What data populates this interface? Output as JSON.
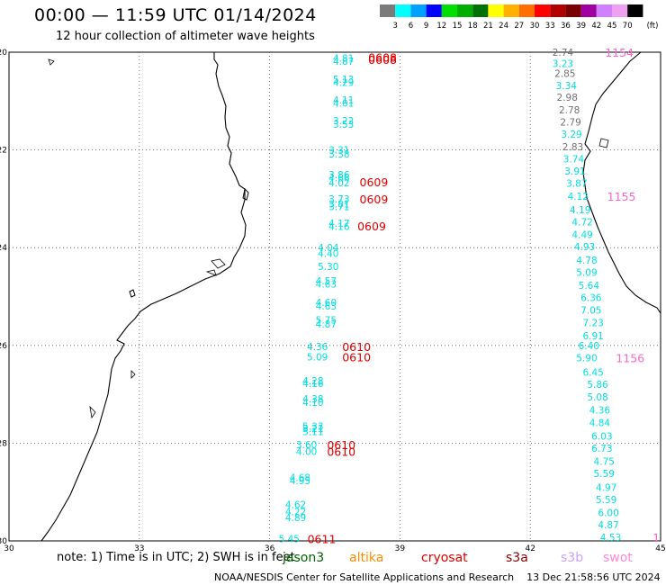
{
  "header": {
    "title": "00:00 — 11:59 UTC 01/14/2024",
    "subtitle": "12 hour collection of altimeter wave heights"
  },
  "colorbar": {
    "unit": "(ft)",
    "ticks": [
      "3",
      "6",
      "9",
      "12",
      "15",
      "18",
      "21",
      "24",
      "27",
      "30",
      "33",
      "36",
      "39",
      "42",
      "45",
      "70"
    ],
    "colors": [
      "#7b7b7b",
      "#00ffff",
      "#00a0ff",
      "#0000ff",
      "#00e000",
      "#00ae00",
      "#007000",
      "#ffff00",
      "#ffb000",
      "#ff6e00",
      "#ff0000",
      "#b00000",
      "#780000",
      "#a000a0",
      "#d080ff",
      "#f0a0f0",
      "#000000"
    ]
  },
  "axes": {
    "lon_labels": [
      "30",
      "33",
      "36",
      "39",
      "42",
      "45"
    ],
    "lat_labels": [
      "-20",
      "-22",
      "-24",
      "-26",
      "-28",
      "-30"
    ],
    "lon_range": [
      30,
      45
    ],
    "lat_range": [
      -30,
      -20
    ]
  },
  "tracks": [
    {
      "pass": "0608",
      "pass_lat": -20.15,
      "pass_lon": 38.6,
      "pass_color": "#e00000",
      "points": [
        {
          "lat": -20.12,
          "lon": 37.7,
          "h": "4.81",
          "color": "#00e0e0"
        },
        {
          "lat": -20.18,
          "lon": 37.7,
          "h": "4.87",
          "color": "#00e0e0"
        },
        {
          "lat": -20.55,
          "lon": 37.7,
          "h": "5.13",
          "color": "#00e0e0"
        },
        {
          "lat": -20.62,
          "lon": 37.7,
          "h": "4.29",
          "color": "#00e0e0"
        },
        {
          "lat": -20.98,
          "lon": 37.7,
          "h": "4.11",
          "color": "#00e0e0"
        },
        {
          "lat": -21.04,
          "lon": 37.7,
          "h": "4.01",
          "color": "#00e0e0"
        },
        {
          "lat": -21.4,
          "lon": 37.7,
          "h": "3.22",
          "color": "#00e0e0"
        },
        {
          "lat": -21.47,
          "lon": 37.7,
          "h": "3.53",
          "color": "#00e0e0"
        }
      ]
    },
    {
      "pass": "0608",
      "pass_lat": -20.1,
      "pass_lon": 38.6,
      "pass_color": "#e00000",
      "points": []
    },
    {
      "pass": "0609",
      "pass_lat": -22.65,
      "pass_lon": 38.4,
      "pass_color": "#e00000",
      "points": [
        {
          "lat": -22.0,
          "lon": 37.6,
          "h": "3.31",
          "color": "#00e0e0"
        },
        {
          "lat": -22.08,
          "lon": 37.6,
          "h": "3.38",
          "color": "#00e0e0"
        },
        {
          "lat": -22.5,
          "lon": 37.6,
          "h": "3.86",
          "color": "#00e0e0"
        },
        {
          "lat": -22.57,
          "lon": 37.6,
          "h": "4.66",
          "color": "#00e0e0"
        },
        {
          "lat": -22.67,
          "lon": 37.6,
          "h": "4.02",
          "color": "#00e0e0"
        }
      ]
    },
    {
      "pass": "0609",
      "pass_lat": -23.0,
      "pass_lon": 38.4,
      "pass_color": "#e00000",
      "points": [
        {
          "lat": -23.0,
          "lon": 37.6,
          "h": "3.73",
          "color": "#00e0e0"
        },
        {
          "lat": -23.1,
          "lon": 37.6,
          "h": "3.81",
          "color": "#00e0e0"
        },
        {
          "lat": -23.16,
          "lon": 37.6,
          "h": "3.71",
          "color": "#00e0e0"
        }
      ]
    },
    {
      "pass": "0609",
      "pass_lat": -23.55,
      "pass_lon": 38.35,
      "pass_color": "#e00000",
      "points": [
        {
          "lat": -23.5,
          "lon": 37.6,
          "h": "4.17",
          "color": "#00e0e0"
        },
        {
          "lat": -23.56,
          "lon": 37.6,
          "h": "4.16",
          "color": "#00e0e0"
        }
      ]
    },
    {
      "pass": "",
      "pass_lat": -24.0,
      "pass_lon": 38.0,
      "pass_color": "#e00000",
      "points": [
        {
          "lat": -24.0,
          "lon": 37.35,
          "h": "4.04",
          "color": "#00e0e0"
        },
        {
          "lat": -24.12,
          "lon": 37.35,
          "h": "4.40",
          "color": "#00e0e0"
        },
        {
          "lat": -24.38,
          "lon": 37.35,
          "h": "5.30",
          "color": "#00e0e0"
        },
        {
          "lat": -24.68,
          "lon": 37.3,
          "h": "4.57",
          "color": "#00e0e0"
        },
        {
          "lat": -24.74,
          "lon": 37.3,
          "h": "4.63",
          "color": "#00e0e0"
        },
        {
          "lat": -25.12,
          "lon": 37.3,
          "h": "4.60",
          "color": "#00e0e0"
        },
        {
          "lat": -25.19,
          "lon": 37.3,
          "h": "4.63",
          "color": "#00e0e0"
        },
        {
          "lat": -25.48,
          "lon": 37.3,
          "h": "5.75",
          "color": "#00e0e0"
        },
        {
          "lat": -25.56,
          "lon": 37.3,
          "h": "4.87",
          "color": "#00e0e0"
        }
      ]
    },
    {
      "pass": "0610",
      "pass_lat": -26.02,
      "pass_lon": 38.0,
      "pass_color": "#e00000",
      "points": [
        {
          "lat": -26.02,
          "lon": 37.1,
          "h": "4.36",
          "color": "#00e0e0"
        },
        {
          "lat": -26.23,
          "lon": 37.1,
          "h": "5.09",
          "color": "#00e0e0"
        }
      ]
    },
    {
      "pass": "0610",
      "pass_lat": -26.23,
      "pass_lon": 38.0,
      "pass_color": "#e00000",
      "points": []
    },
    {
      "pass": "",
      "pass_lat": -27.0,
      "pass_lon": 38.0,
      "pass_color": "#e00000",
      "points": [
        {
          "lat": -26.72,
          "lon": 37.0,
          "h": "4.28",
          "color": "#00e0e0"
        },
        {
          "lat": -26.78,
          "lon": 37.0,
          "h": "4.16",
          "color": "#00e0e0"
        },
        {
          "lat": -27.09,
          "lon": 37.0,
          "h": "4.38",
          "color": "#00e0e0"
        },
        {
          "lat": -27.16,
          "lon": 37.0,
          "h": "4.10",
          "color": "#00e0e0"
        },
        {
          "lat": -27.65,
          "lon": 37.0,
          "h": "5.33",
          "color": "#00e0e0"
        },
        {
          "lat": -27.7,
          "lon": 37.0,
          "h": "5.21",
          "color": "#00e0e0"
        },
        {
          "lat": -27.76,
          "lon": 37.0,
          "h": "5.11",
          "color": "#00e0e0"
        }
      ]
    },
    {
      "pass": "0610",
      "pass_lat": -28.03,
      "pass_lon": 37.65,
      "pass_color": "#e00000",
      "points": [
        {
          "lat": -28.03,
          "lon": 36.85,
          "h": "3.60",
          "color": "#00e0e0"
        },
        {
          "lat": -28.17,
          "lon": 36.85,
          "h": "4.00",
          "color": "#00e0e0"
        }
      ]
    },
    {
      "pass": "0610",
      "pass_lat": -28.17,
      "pass_lon": 37.65,
      "pass_color": "#e00000",
      "points": []
    },
    {
      "pass": "0611",
      "pass_lat": -29.95,
      "pass_lon": 37.2,
      "pass_color": "#e00000",
      "points": [
        {
          "lat": -28.7,
          "lon": 36.7,
          "h": "4.68",
          "color": "#00e0e0"
        },
        {
          "lat": -28.77,
          "lon": 36.7,
          "h": "4.95",
          "color": "#00e0e0"
        },
        {
          "lat": -29.25,
          "lon": 36.6,
          "h": "4.62",
          "color": "#00e0e0"
        },
        {
          "lat": -29.4,
          "lon": 36.6,
          "h": "4.22",
          "color": "#00e0e0"
        },
        {
          "lat": -29.52,
          "lon": 36.6,
          "h": "4.89",
          "color": "#00e0e0"
        },
        {
          "lat": -29.95,
          "lon": 36.45,
          "h": "5.45",
          "color": "#00e0e0"
        }
      ]
    },
    {
      "pass": "1154",
      "pass_lat": -20.0,
      "pass_lon": 44.05,
      "pass_color": "#ff66cc",
      "points": [
        {
          "lat": -20.0,
          "lon": 42.75,
          "h": "2.74",
          "color": "#707070"
        },
        {
          "lat": -20.23,
          "lon": 42.75,
          "h": "3.23",
          "color": "#00e0e0"
        },
        {
          "lat": -20.43,
          "lon": 42.8,
          "h": "2.85",
          "color": "#707070"
        },
        {
          "lat": -20.68,
          "lon": 42.83,
          "h": "3.34",
          "color": "#00e0e0"
        },
        {
          "lat": -20.92,
          "lon": 42.85,
          "h": "2.98",
          "color": "#707070"
        },
        {
          "lat": -21.18,
          "lon": 42.9,
          "h": "2.78",
          "color": "#707070"
        },
        {
          "lat": -21.43,
          "lon": 42.93,
          "h": "2.79",
          "color": "#707070"
        },
        {
          "lat": -21.68,
          "lon": 42.95,
          "h": "3.29",
          "color": "#00e0e0"
        },
        {
          "lat": -21.93,
          "lon": 42.98,
          "h": "2.83",
          "color": "#707070"
        },
        {
          "lat": -22.18,
          "lon": 43.0,
          "h": "3.74",
          "color": "#00e0e0"
        },
        {
          "lat": -22.43,
          "lon": 43.03,
          "h": "3.91",
          "color": "#00e0e0"
        },
        {
          "lat": -22.68,
          "lon": 43.07,
          "h": "3.87",
          "color": "#00e0e0"
        }
      ]
    },
    {
      "pass": "1155",
      "pass_lat": -22.95,
      "pass_lon": 44.1,
      "pass_color": "#ff66cc",
      "points": [
        {
          "lat": -22.95,
          "lon": 43.1,
          "h": "4.12",
          "color": "#00e0e0"
        },
        {
          "lat": -23.22,
          "lon": 43.15,
          "h": "4.19",
          "color": "#00e0e0"
        },
        {
          "lat": -23.47,
          "lon": 43.2,
          "h": "4.72",
          "color": "#00e0e0"
        },
        {
          "lat": -23.73,
          "lon": 43.2,
          "h": "4.49",
          "color": "#00e0e0"
        },
        {
          "lat": -23.98,
          "lon": 43.25,
          "h": "4.93",
          "color": "#00e0e0"
        },
        {
          "lat": -24.25,
          "lon": 43.3,
          "h": "4.78",
          "color": "#00e0e0"
        },
        {
          "lat": -24.5,
          "lon": 43.3,
          "h": "5.09",
          "color": "#00e0e0"
        },
        {
          "lat": -24.77,
          "lon": 43.35,
          "h": "5.64",
          "color": "#00e0e0"
        },
        {
          "lat": -25.02,
          "lon": 43.4,
          "h": "6.36",
          "color": "#00e0e0"
        },
        {
          "lat": -25.28,
          "lon": 43.4,
          "h": "7.05",
          "color": "#00e0e0"
        },
        {
          "lat": -25.53,
          "lon": 43.45,
          "h": "7.23",
          "color": "#00e0e0"
        },
        {
          "lat": -25.8,
          "lon": 43.45,
          "h": "6.91",
          "color": "#00e0e0"
        },
        {
          "lat": -26.0,
          "lon": 43.35,
          "h": "6.40",
          "color": "#00e0e0"
        }
      ]
    },
    {
      "pass": "1156",
      "pass_lat": -26.25,
      "pass_lon": 44.3,
      "pass_color": "#ff66cc",
      "points": [
        {
          "lat": -26.25,
          "lon": 43.3,
          "h": "5.90",
          "color": "#00e0e0"
        },
        {
          "lat": -26.55,
          "lon": 43.45,
          "h": "6.45",
          "color": "#00e0e0"
        },
        {
          "lat": -26.8,
          "lon": 43.55,
          "h": "5.86",
          "color": "#00e0e0"
        },
        {
          "lat": -27.05,
          "lon": 43.55,
          "h": "5.08",
          "color": "#00e0e0"
        },
        {
          "lat": -27.32,
          "lon": 43.6,
          "h": "4.36",
          "color": "#00e0e0"
        },
        {
          "lat": -27.58,
          "lon": 43.6,
          "h": "4.84",
          "color": "#00e0e0"
        },
        {
          "lat": -27.85,
          "lon": 43.65,
          "h": "6.03",
          "color": "#00e0e0"
        },
        {
          "lat": -28.1,
          "lon": 43.65,
          "h": "6.73",
          "color": "#00e0e0"
        },
        {
          "lat": -28.37,
          "lon": 43.7,
          "h": "4.75",
          "color": "#00e0e0"
        },
        {
          "lat": -28.62,
          "lon": 43.7,
          "h": "5.59",
          "color": "#00e0e0"
        },
        {
          "lat": -28.9,
          "lon": 43.75,
          "h": "4.97",
          "color": "#00e0e0"
        },
        {
          "lat": -29.15,
          "lon": 43.75,
          "h": "5.59",
          "color": "#00e0e0"
        },
        {
          "lat": -29.42,
          "lon": 43.8,
          "h": "6.00",
          "color": "#00e0e0"
        },
        {
          "lat": -29.67,
          "lon": 43.8,
          "h": "4.87",
          "color": "#00e0e0"
        },
        {
          "lat": -29.93,
          "lon": 43.85,
          "h": "4.53",
          "color": "#00e0e0"
        }
      ]
    },
    {
      "pass": "1",
      "pass_lat": -29.93,
      "pass_lon": 44.9,
      "pass_color": "#ff66cc",
      "points": []
    }
  ],
  "footer": {
    "note": "note:  1) Time is in UTC; 2) SWH is in feet",
    "satellites": [
      {
        "name": "jason3",
        "color": "#006400"
      },
      {
        "name": "altika",
        "color": "#ff8c00"
      },
      {
        "name": "cryosat",
        "color": "#e00000"
      },
      {
        "name": "s3a",
        "color": "#8b0000"
      },
      {
        "name": "s3b",
        "color": "#c8a0ff"
      },
      {
        "name": "swot",
        "color": "#ff88dd"
      }
    ],
    "credit": "NOAA/NESDIS Center for Satellite Applications and Research",
    "timestamp": "13 Dec 21:58:56 UTC 2024"
  }
}
